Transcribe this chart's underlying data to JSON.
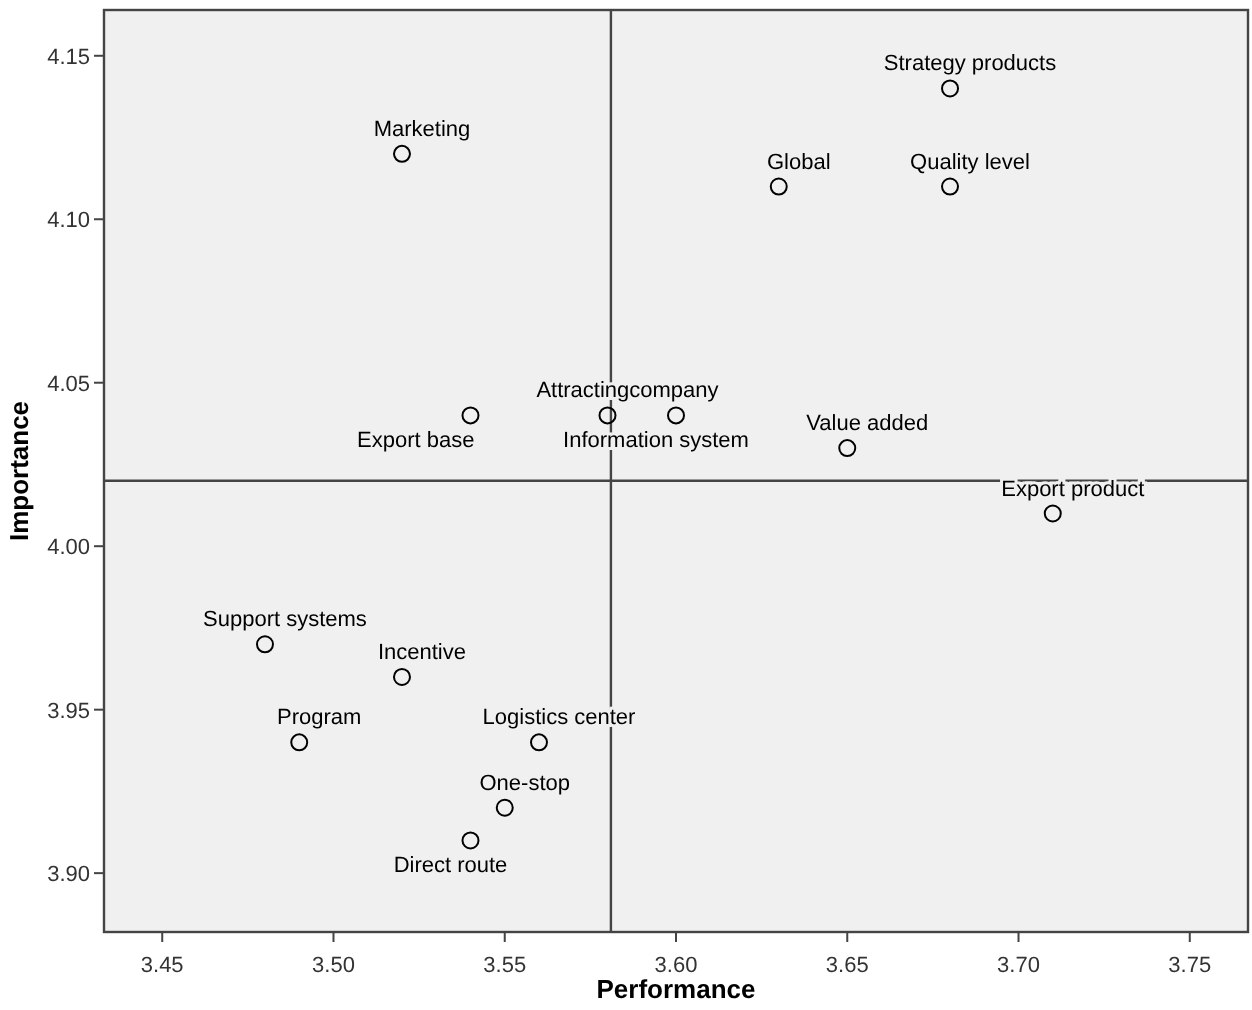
{
  "chart_data": {
    "type": "scatter",
    "xlabel": "Performance",
    "ylabel": "Importance",
    "x": [
      3.52,
      3.68,
      3.63,
      3.68,
      3.54,
      3.58,
      3.6,
      3.65,
      3.71,
      3.48,
      3.52,
      3.49,
      3.56,
      3.55,
      3.54
    ],
    "series": [
      {
        "color": "#000000",
        "values": [
          4.12,
          4.14,
          4.11,
          4.11,
          4.04,
          4.04,
          4.04,
          4.03,
          4.01,
          3.97,
          3.96,
          3.94,
          3.94,
          3.92,
          3.91
        ]
      }
    ],
    "marker": "circle",
    "grid": false,
    "xlim": [
      3.433,
      3.767
    ],
    "ylim": [
      3.882,
      4.164
    ],
    "xticks": [
      3.45,
      {
        "value": 3.5,
        "label": "3.50"
      },
      3.55,
      {
        "value": 3.6,
        "label": "3.60"
      },
      3.65,
      {
        "value": 3.7,
        "label": "3.70"
      },
      3.75
    ],
    "yticks": [
      {
        "value": 3.9,
        "label": "3.90"
      },
      3.95,
      {
        "value": 4,
        "label": "4.00"
      },
      4.05,
      {
        "value": 4.1,
        "label": "4.10"
      },
      4.15
    ],
    "ref_lines": [
      {
        "axis": "x",
        "value": 3.581
      },
      {
        "axis": "y",
        "value": 4.02
      }
    ],
    "annotations": [
      {
        "text": "Marketing",
        "x": 3.52,
        "y": 4.12
      },
      {
        "text": "Strategy products",
        "x": 3.68,
        "y": 4.14
      },
      {
        "text": "Global",
        "x": 3.63,
        "y": 4.11
      },
      {
        "text": "Quality level",
        "x": 3.68,
        "y": 4.11
      },
      {
        "text": "Export base",
        "x": 3.54,
        "y": 4.04
      },
      {
        "text": "Attractingcompany",
        "x": 3.58,
        "y": 4.04
      },
      {
        "text": "Information system",
        "x": 3.6,
        "y": 4.04
      },
      {
        "text": "Value added",
        "x": 3.65,
        "y": 4.03
      },
      {
        "text": "Export product",
        "x": 3.71,
        "y": 4.01
      },
      {
        "text": "Support systems",
        "x": 3.48,
        "y": 3.97
      },
      {
        "text": "Incentive",
        "x": 3.52,
        "y": 3.96
      },
      {
        "text": "Program",
        "x": 3.49,
        "y": 3.94
      },
      {
        "text": "Logistics center",
        "x": 3.56,
        "y": 3.94
      },
      {
        "text": "One-stop",
        "x": 3.55,
        "y": 3.92
      },
      {
        "text": "Direct route",
        "x": 3.54,
        "y": 3.91
      }
    ]
  }
}
